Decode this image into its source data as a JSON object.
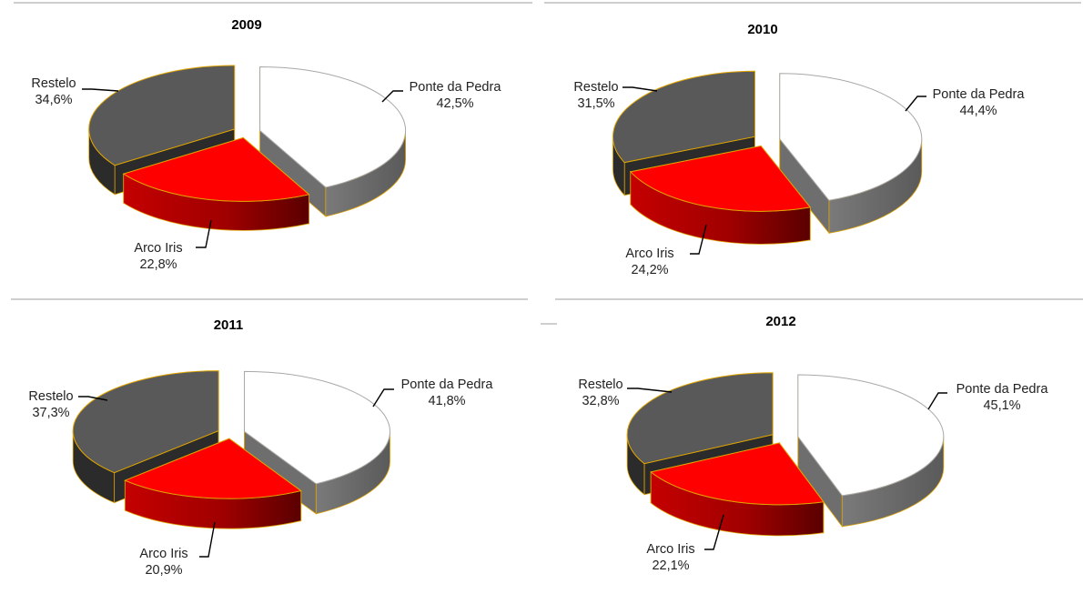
{
  "colors": {
    "Ponte da Pedra": {
      "top": "#ffffff",
      "side": "#6e6e6e"
    },
    "Arco Iris": {
      "top": "#ff0000",
      "side": "#a80000"
    },
    "Restelo": {
      "top": "#595959",
      "side": "#2b2b2b"
    },
    "slice_outline": "#e0a400",
    "divider": "#bdbdbd"
  },
  "chart_data": [
    {
      "type": "pie",
      "title": "2009",
      "legend": "none",
      "slices": [
        {
          "label": "Ponte da Pedra",
          "value": 42.5,
          "display": "42,5%"
        },
        {
          "label": "Arco Iris",
          "value": 22.8,
          "display": "22,8%"
        },
        {
          "label": "Restelo",
          "value": 34.6,
          "display": "34,6%"
        }
      ]
    },
    {
      "type": "pie",
      "title": "2010",
      "legend": "none",
      "slices": [
        {
          "label": "Ponte da Pedra",
          "value": 44.4,
          "display": "44,4%"
        },
        {
          "label": "Arco Iris",
          "value": 24.2,
          "display": "24,2%"
        },
        {
          "label": "Restelo",
          "value": 31.5,
          "display": "31,5%"
        }
      ]
    },
    {
      "type": "pie",
      "title": "2011",
      "legend": "none",
      "slices": [
        {
          "label": "Ponte da Pedra",
          "value": 41.8,
          "display": "41,8%"
        },
        {
          "label": "Arco Iris",
          "value": 20.9,
          "display": "20,9%"
        },
        {
          "label": "Restelo",
          "value": 37.3,
          "display": "37,3%"
        }
      ]
    },
    {
      "type": "pie",
      "title": "2012",
      "legend": "none",
      "slices": [
        {
          "label": "Ponte da Pedra",
          "value": 45.1,
          "display": "45,1%"
        },
        {
          "label": "Arco Iris",
          "value": 22.1,
          "display": "22,1%"
        },
        {
          "label": "Restelo",
          "value": 32.8,
          "display": "32,8%"
        }
      ]
    }
  ]
}
